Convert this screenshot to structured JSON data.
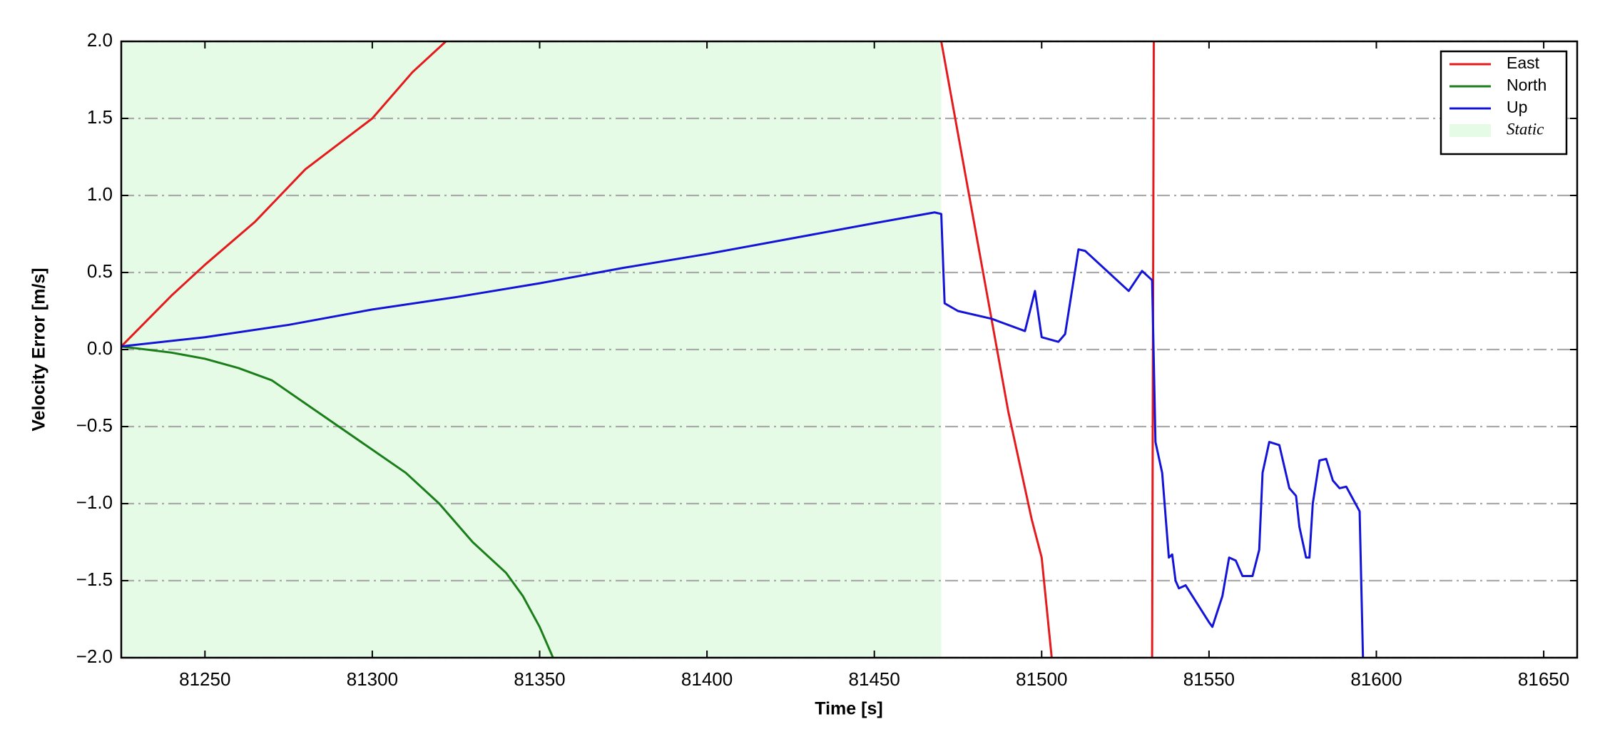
{
  "chart_data": {
    "type": "line",
    "xlabel": "Time [s]",
    "ylabel": "Velocity Error [m/s]",
    "xlim": [
      81225,
      81660
    ],
    "ylim": [
      -2.0,
      2.0
    ],
    "xticks": [
      81250,
      81300,
      81350,
      81400,
      81450,
      81500,
      81550,
      81600,
      81650
    ],
    "yticks": [
      {
        "value": -2.0,
        "label": "−2.0"
      },
      {
        "value": -1.5,
        "label": "−1.5"
      },
      {
        "value": -1.0,
        "label": "−1.0"
      },
      {
        "value": -0.5,
        "label": "−0.5"
      },
      {
        "value": 0,
        "label": "0.0"
      },
      {
        "value": 0.5,
        "label": "0.5"
      },
      {
        "value": 1.0,
        "label": "1.0"
      },
      {
        "value": 1.5,
        "label": "1.5"
      },
      {
        "value": 2.0,
        "label": "2.0"
      }
    ],
    "grid": true,
    "legend": "upper right",
    "shaded_region": {
      "label": "Static",
      "range": [
        81225,
        81470
      ],
      "color": "#e6fbe6"
    },
    "series": [
      {
        "name": "East",
        "color": "#e41a1c",
        "x": [
          81225,
          81240,
          81250,
          81265,
          81280,
          81300,
          81312,
          81322,
          null,
          81470,
          81480,
          81490,
          81497,
          81500,
          81503,
          null,
          81533,
          81533.5
        ],
        "values": [
          0.02,
          0.35,
          0.55,
          0.83,
          1.17,
          1.5,
          1.8,
          2.0,
          null,
          2.0,
          0.8,
          -0.4,
          -1.1,
          -1.35,
          -2.0,
          null,
          -2.0,
          2.0
        ]
      },
      {
        "name": "North",
        "color": "#1a7f1a",
        "x": [
          81225,
          81240,
          81250,
          81260,
          81270,
          81280,
          81290,
          81300,
          81310,
          81320,
          81330,
          81340,
          81345,
          81350,
          81354
        ],
        "values": [
          0.02,
          -0.02,
          -0.06,
          -0.12,
          -0.2,
          -0.35,
          -0.5,
          -0.65,
          -0.8,
          -1.0,
          -1.25,
          -1.45,
          -1.6,
          -1.8,
          -2.0
        ]
      },
      {
        "name": "Up",
        "color": "#1414d8",
        "x": [
          81225,
          81250,
          81275,
          81300,
          81325,
          81350,
          81375,
          81400,
          81425,
          81450,
          81468,
          81470,
          81471,
          81475,
          81485,
          81495,
          81498,
          81500,
          81505,
          81507,
          81511,
          81513,
          81526,
          81530,
          81533,
          81534,
          81536,
          81538,
          81539,
          81540,
          81541,
          81543,
          81550,
          81551,
          81554,
          81556,
          81558,
          81560,
          81563,
          81565,
          81566,
          81568,
          81571,
          81574,
          81576,
          81577,
          81579,
          81580,
          81581,
          81583,
          81585,
          81587,
          81589,
          81591,
          81595,
          81596
        ],
        "values": [
          0.02,
          0.08,
          0.16,
          0.26,
          0.34,
          0.43,
          0.53,
          0.62,
          0.72,
          0.82,
          0.89,
          0.88,
          0.3,
          0.25,
          0.2,
          0.12,
          0.38,
          0.08,
          0.05,
          0.1,
          0.65,
          0.64,
          0.38,
          0.51,
          0.45,
          -0.6,
          -0.8,
          -1.35,
          -1.33,
          -1.5,
          -1.55,
          -1.53,
          -1.77,
          -1.8,
          -1.6,
          -1.35,
          -1.37,
          -1.47,
          -1.47,
          -1.3,
          -0.8,
          -0.6,
          -0.62,
          -0.9,
          -0.95,
          -1.15,
          -1.35,
          -1.35,
          -1.0,
          -0.72,
          -0.71,
          -0.85,
          -0.9,
          -0.89,
          -1.05,
          -2.0
        ]
      }
    ]
  }
}
